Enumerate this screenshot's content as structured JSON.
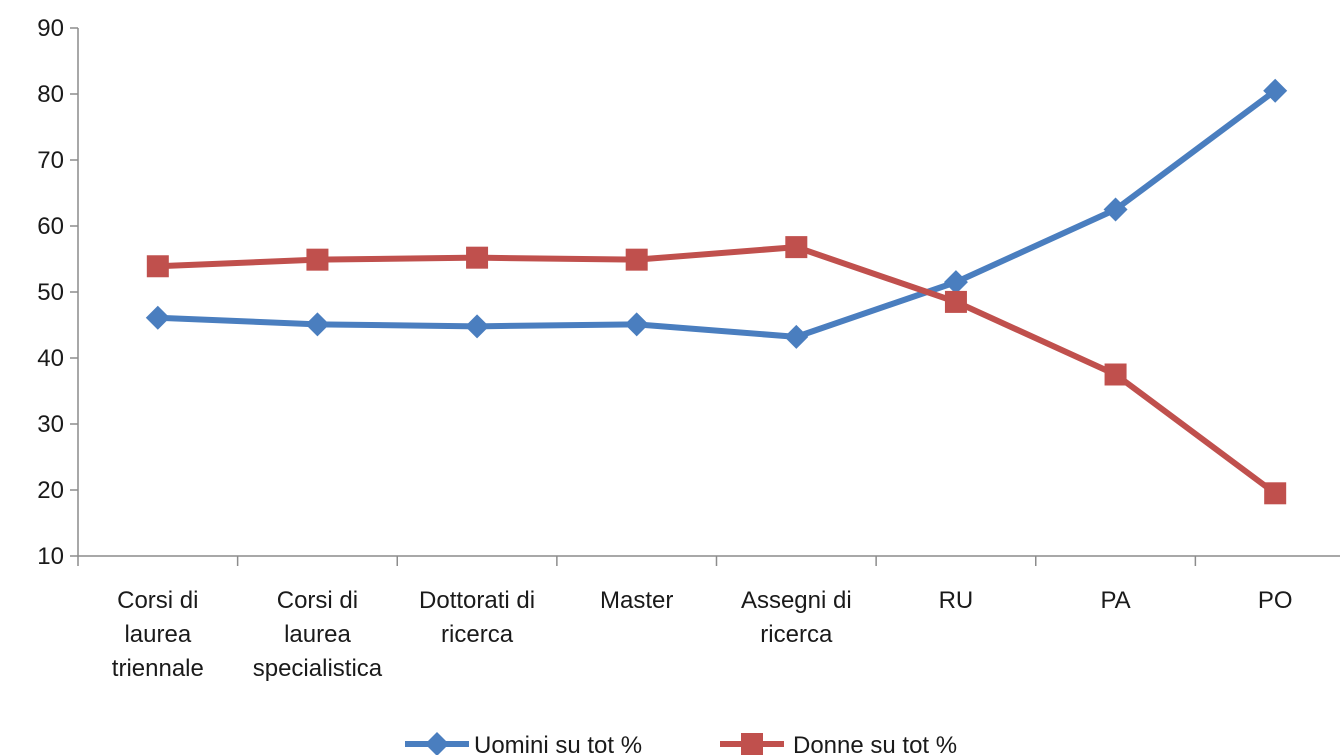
{
  "chart_data": {
    "type": "line",
    "categories": [
      [
        "Corsi di",
        "laurea",
        "triennale"
      ],
      [
        "Corsi di",
        "laurea",
        "specialistica"
      ],
      [
        "Dottorati di",
        "ricerca"
      ],
      [
        "Master"
      ],
      [
        "Assegni di",
        "ricerca"
      ],
      [
        "RU"
      ],
      [
        "PA"
      ],
      [
        "PO"
      ]
    ],
    "series": [
      {
        "name": "Uomini su tot %",
        "color": "#4a7ebf",
        "marker": "diamond",
        "values": [
          46.1,
          45.1,
          44.8,
          45.1,
          43.2,
          51.5,
          62.5,
          80.5
        ]
      },
      {
        "name": "Donne su tot %",
        "color": "#c0504d",
        "marker": "square",
        "values": [
          53.9,
          54.9,
          55.2,
          54.9,
          56.8,
          48.5,
          37.5,
          19.5
        ]
      }
    ],
    "ylim": [
      10,
      90
    ],
    "yticks": [
      10,
      20,
      30,
      40,
      50,
      60,
      70,
      80,
      90
    ],
    "grid": false,
    "legend_position": "bottom"
  }
}
